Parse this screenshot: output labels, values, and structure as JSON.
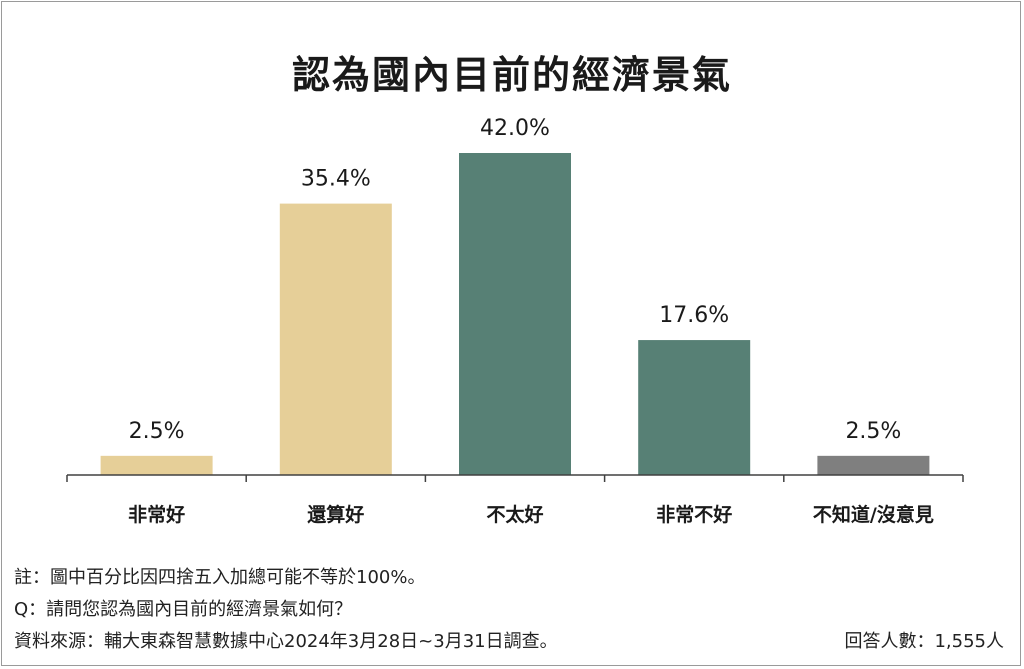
{
  "chart_data": {
    "type": "bar",
    "title": "認為國內目前的經濟景氣",
    "categories": [
      "非常好",
      "還算好",
      "不太好",
      "非常不好",
      "不知道/沒意見"
    ],
    "values": [
      2.5,
      35.4,
      42.0,
      17.6,
      2.5
    ],
    "data_labels": [
      "2.5%",
      "35.4%",
      "42.0%",
      "17.6%",
      "2.5%"
    ],
    "bar_colors": [
      "#e6cf98",
      "#e6cf98",
      "#578075",
      "#578075",
      "#7f7f7f"
    ],
    "ylim": [
      0,
      42.0
    ],
    "grid": false,
    "legend": "none"
  },
  "notes": {
    "note": "註：圖中百分比因四捨五入加總可能不等於100%。",
    "question": "Q：請問您認為國內目前的經濟景氣如何？",
    "source": "資料來源：輔大東森智慧數據中心2024年3月28日~3月31日調查。",
    "respondents": "回答人數：1,555人"
  }
}
